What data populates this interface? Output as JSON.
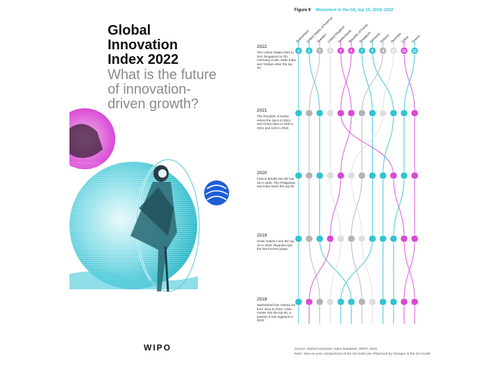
{
  "cover": {
    "title_lines": [
      "Global",
      "Innovation",
      "Index 2022"
    ],
    "subtitle_lines": [
      "What is the future",
      "of innovation-",
      "driven growth?"
    ],
    "publisher": "WIPO"
  },
  "figure": {
    "label": "Figure 9",
    "title": "Movement in the GII, top 10, 2018–2022"
  },
  "year_notes": [
    {
      "year": "2022",
      "note": "The United States rises to 2nd, Singapore to 7th, Germany to 8th, while India and Türkiye enter the top 40."
    },
    {
      "year": "2021",
      "note": "The Republic of Korea enters the top 5 in 2021, and China rises to 12th in 2021 and 11th in 2022."
    },
    {
      "year": "2020",
      "note": "France breaks into the top 15 in 2020. The Philippines and India reach the top 50."
    },
    {
      "year": "2019",
      "note": "Israel makes it into the top 10 in 2019. Rwanda tops the low-income group."
    },
    {
      "year": "2018",
      "note": "Switzerland has ranked 1st from 2011 to 2022. Chile moves into the top 50, a position it has regained in 2022."
    }
  ],
  "source": {
    "line1": "Source: Global Innovation Index Database, WIPO, 2022.",
    "line2": "Note: Year-on-year comparisons of the GII ranks are influenced by changes in the GII model."
  },
  "colors": {
    "cyan": "#33c3d3",
    "magenta": "#d94ad6",
    "gray": "#b3b3b3",
    "lightgray": "#dedede",
    "darkgray": "#9a9a9a"
  },
  "chart_data": {
    "type": "bump",
    "title": "Movement in the GII, top 10, 2018–2022",
    "years": [
      "2018",
      "2019",
      "2020",
      "2021",
      "2022"
    ],
    "economies": [
      "Switzerland",
      "United States of America",
      "Sweden",
      "United Kingdom",
      "Netherlands",
      "Republic of Korea",
      "Singapore",
      "Germany",
      "Finland",
      "Denmark",
      "China",
      "France"
    ],
    "rank_labels_2022": [
      "1",
      "2",
      "3",
      "4",
      "5",
      "6",
      "7",
      "8",
      "9",
      "10",
      "11",
      "12"
    ],
    "series": [
      {
        "name": "Switzerland",
        "color": "cyan",
        "ranks": [
          1,
          1,
          1,
          1,
          1
        ]
      },
      {
        "name": "United States of America",
        "color": "cyan",
        "ranks": [
          6,
          3,
          3,
          3,
          2
        ]
      },
      {
        "name": "Sweden",
        "color": "gray",
        "ranks": [
          3,
          2,
          2,
          2,
          3
        ]
      },
      {
        "name": "United Kingdom",
        "color": "lightgray",
        "ranks": [
          4,
          5,
          4,
          4,
          4
        ]
      },
      {
        "name": "Netherlands",
        "color": "magenta",
        "ranks": [
          2,
          4,
          5,
          6,
          5
        ]
      },
      {
        "name": "Republic of Korea",
        "color": "magenta",
        "ranks": [
          12,
          11,
          10,
          5,
          6
        ]
      },
      {
        "name": "Singapore",
        "color": "cyan",
        "ranks": [
          5,
          8,
          8,
          8,
          7
        ]
      },
      {
        "name": "Germany",
        "color": "cyan",
        "ranks": [
          9,
          9,
          9,
          10,
          8
        ]
      },
      {
        "name": "Finland",
        "color": "gray",
        "ranks": [
          7,
          6,
          7,
          7,
          9
        ]
      },
      {
        "name": "Denmark",
        "color": "lightgray",
        "ranks": [
          8,
          7,
          6,
          9,
          10
        ]
      },
      {
        "name": "China",
        "color": "magenta",
        "ranks": [
          11,
          12,
          12,
          12,
          11
        ]
      },
      {
        "name": "France",
        "color": "cyan",
        "ranks": [
          10,
          10,
          11,
          11,
          12
        ]
      }
    ]
  }
}
